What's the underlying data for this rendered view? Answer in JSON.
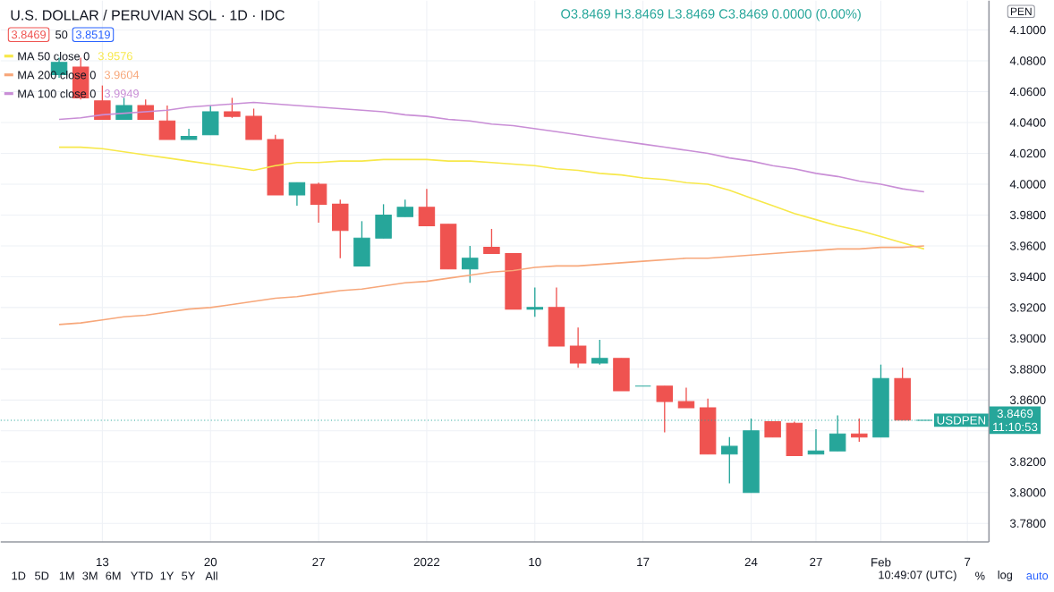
{
  "chart_data": {
    "type": "candlestick",
    "title": "U.S. DOLLAR / PERUVIAN SOL · 1D · IDC",
    "categories": [
      null,
      null,
      "13",
      null,
      null,
      null,
      null,
      "20",
      null,
      null,
      null,
      null,
      "27",
      null,
      null,
      null,
      null,
      "2022",
      null,
      null,
      null,
      null,
      "10",
      null,
      null,
      null,
      null,
      "17",
      null,
      null,
      null,
      null,
      "24",
      null,
      null,
      "27",
      null,
      null,
      "Feb",
      null,
      null,
      null,
      "7"
    ],
    "ohlc": [
      [
        4.071,
        4.082,
        4.069,
        4.079
      ],
      [
        4.076,
        4.082,
        4.055,
        4.056
      ],
      [
        4.054,
        4.064,
        4.042,
        4.042
      ],
      [
        4.042,
        4.056,
        4.042,
        4.051
      ],
      [
        4.051,
        4.055,
        4.042,
        4.042
      ],
      [
        4.041,
        4.051,
        4.029,
        4.029
      ],
      [
        4.029,
        4.036,
        4.029,
        4.031
      ],
      [
        4.032,
        4.051,
        4.032,
        4.047
      ],
      [
        4.047,
        4.056,
        4.043,
        4.044
      ],
      [
        4.044,
        4.049,
        4.029,
        4.029
      ],
      [
        4.029,
        4.032,
        3.993,
        3.993
      ],
      [
        3.993,
        4.001,
        3.986,
        4.001
      ],
      [
        4.0,
        4.001,
        3.975,
        3.987
      ],
      [
        3.987,
        3.99,
        3.952,
        3.97
      ],
      [
        3.947,
        3.976,
        3.947,
        3.965
      ],
      [
        3.965,
        3.987,
        3.965,
        3.98
      ],
      [
        3.979,
        3.99,
        3.979,
        3.985
      ],
      [
        3.985,
        3.997,
        3.973,
        3.973
      ],
      [
        3.974,
        3.974,
        3.945,
        3.945
      ],
      [
        3.945,
        3.96,
        3.936,
        3.952
      ],
      [
        3.959,
        3.971,
        3.955,
        3.955
      ],
      [
        3.955,
        3.955,
        3.919,
        3.919
      ],
      [
        3.919,
        3.933,
        3.914,
        3.92
      ],
      [
        3.92,
        3.933,
        3.895,
        3.895
      ],
      [
        3.895,
        3.907,
        3.881,
        3.884
      ],
      [
        3.884,
        3.899,
        3.883,
        3.887
      ],
      [
        3.887,
        3.887,
        3.866,
        3.866
      ],
      [
        3.869,
        3.869,
        3.869,
        3.869
      ],
      [
        3.869,
        3.869,
        3.839,
        3.859
      ],
      [
        3.859,
        3.868,
        3.855,
        3.855
      ],
      [
        3.855,
        3.861,
        3.825,
        3.825
      ],
      [
        3.825,
        3.836,
        3.806,
        3.83
      ],
      [
        3.8,
        3.848,
        3.8,
        3.84
      ],
      [
        3.846,
        3.846,
        3.836,
        3.836
      ],
      [
        3.845,
        3.846,
        3.824,
        3.824
      ],
      [
        3.825,
        3.841,
        3.825,
        3.827
      ],
      [
        3.827,
        3.85,
        3.827,
        3.838
      ],
      [
        3.838,
        3.848,
        3.833,
        3.836
      ],
      [
        3.836,
        3.883,
        3.836,
        3.874
      ],
      [
        3.874,
        3.881,
        3.847,
        3.847
      ],
      [
        3.8469,
        3.8469,
        3.8469,
        3.8469
      ],
      null,
      null
    ],
    "colors": [
      "#26a69a",
      "#ef5350",
      "#ef5350",
      "#26a69a",
      "#ef5350",
      "#ef5350",
      "#26a69a",
      "#26a69a",
      "#ef5350",
      "#ef5350",
      "#ef5350",
      "#26a69a",
      "#ef5350",
      "#ef5350",
      "#26a69a",
      "#26a69a",
      "#26a69a",
      "#ef5350",
      "#ef5350",
      "#26a69a",
      "#ef5350",
      "#ef5350",
      "#26a69a",
      "#ef5350",
      "#ef5350",
      "#26a69a",
      "#ef5350",
      "#26a69a",
      "#ef5350",
      "#ef5350",
      "#ef5350",
      "#26a69a",
      "#26a69a",
      "#ef5350",
      "#ef5350",
      "#26a69a",
      "#26a69a",
      "#ef5350",
      "#26a69a",
      "#ef5350",
      "#26a69a",
      null,
      null
    ],
    "series": [
      {
        "name": "MA 50 close 0",
        "type": "line",
        "color": "#f7e84a",
        "values": [
          4.024,
          4.024,
          4.023,
          4.021,
          4.019,
          4.017,
          4.015,
          4.013,
          4.011,
          4.009,
          4.012,
          4.014,
          4.014,
          4.015,
          4.015,
          4.016,
          4.016,
          4.016,
          4.015,
          4.015,
          4.014,
          4.013,
          4.012,
          4.01,
          4.009,
          4.007,
          4.006,
          4.004,
          4.003,
          4.001,
          4.0,
          3.996,
          3.991,
          3.986,
          3.981,
          3.977,
          3.973,
          3.97,
          3.966,
          3.962,
          3.958,
          null,
          null
        ]
      },
      {
        "name": "MA 200 close 0",
        "type": "line",
        "color": "#f7a77a",
        "values": [
          3.909,
          3.91,
          3.912,
          3.914,
          3.915,
          3.917,
          3.919,
          3.92,
          3.922,
          3.924,
          3.926,
          3.927,
          3.929,
          3.931,
          3.932,
          3.934,
          3.936,
          3.937,
          3.939,
          3.941,
          3.943,
          3.944,
          3.946,
          3.947,
          3.947,
          3.948,
          3.949,
          3.95,
          3.951,
          3.952,
          3.952,
          3.953,
          3.954,
          3.955,
          3.956,
          3.957,
          3.958,
          3.958,
          3.959,
          3.959,
          3.96,
          null,
          null
        ]
      },
      {
        "name": "MA 100 close 0",
        "type": "line",
        "color": "#c98ed6",
        "values": [
          4.042,
          4.043,
          4.045,
          4.046,
          4.047,
          4.048,
          4.05,
          4.051,
          4.052,
          4.053,
          4.052,
          4.051,
          4.05,
          4.049,
          4.048,
          4.047,
          4.045,
          4.044,
          4.042,
          4.041,
          4.039,
          4.038,
          4.036,
          4.034,
          4.032,
          4.03,
          4.028,
          4.026,
          4.024,
          4.022,
          4.02,
          4.017,
          4.015,
          4.012,
          4.01,
          4.007,
          4.005,
          4.002,
          4.0,
          3.997,
          3.995,
          null,
          null
        ]
      }
    ],
    "ylim": [
      3.768,
      4.119
    ],
    "yticks": [
      {
        "value": 3.78,
        "label": "3.7800"
      },
      {
        "value": 3.8,
        "label": "3.8000"
      },
      {
        "value": 3.82,
        "label": "3.8200"
      },
      {
        "value": 3.84,
        "label": null
      },
      {
        "value": 3.86,
        "label": "3.8600"
      },
      {
        "value": 3.88,
        "label": "3.8800"
      },
      {
        "value": 3.9,
        "label": "3.9000"
      },
      {
        "value": 3.92,
        "label": "3.9200"
      },
      {
        "value": 3.94,
        "label": "3.9400"
      },
      {
        "value": 3.96,
        "label": "3.9600"
      },
      {
        "value": 3.98,
        "label": "3.9800"
      },
      {
        "value": 4.0,
        "label": "4.0000"
      },
      {
        "value": 4.02,
        "label": "4.0200"
      },
      {
        "value": 4.04,
        "label": "4.0400"
      },
      {
        "value": 4.06,
        "label": "4.0600"
      },
      {
        "value": 4.08,
        "label": "4.0800"
      },
      {
        "value": 4.1,
        "label": "4.1000"
      }
    ],
    "grid": true,
    "legend": "top left",
    "ref_lines": [
      {
        "axis": "y",
        "value": 3.8469,
        "label": "USDPEN",
        "color": "#26a69a",
        "line_style": "dotted"
      }
    ],
    "annotations": [
      "3.9576",
      "3.9604",
      "3.9949",
      "O3.8469 H3.8469 L3.8469 C3.8469 0.0000 (0.00%)",
      "3.8469",
      "50",
      "3.8519",
      "3.8469",
      "11:10:53",
      "PEN",
      "1D",
      "5D",
      "1M",
      "3M",
      "6M",
      "YTD",
      "1Y",
      "5Y",
      "All",
      "10:49:07 (UTC)",
      "%",
      "log",
      "auto"
    ]
  }
}
